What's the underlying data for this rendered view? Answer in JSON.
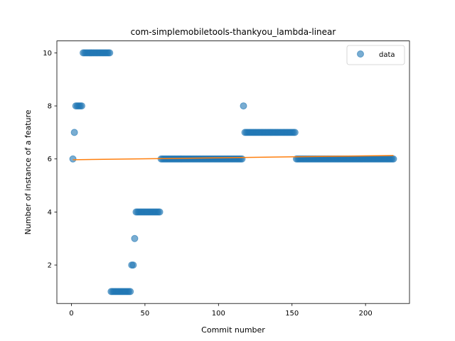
{
  "chart_data": {
    "type": "scatter",
    "title": "com-simplemobiletools-thankyou_lambda-linear",
    "xlabel": "Commit number",
    "ylabel": "Number of instance of a feature",
    "xlim": [
      -9.9,
      229.9
    ],
    "ylim": [
      0.55,
      10.45
    ],
    "xticks": [
      0,
      50,
      100,
      150,
      200
    ],
    "yticks": [
      2,
      4,
      6,
      8,
      10
    ],
    "grid": false,
    "legend": {
      "placement": "top-right",
      "entries": [
        "data"
      ]
    },
    "colors": {
      "scatter": "#1f77b4",
      "fit_line": "#ff7f0e"
    },
    "series": [
      {
        "name": "data",
        "kind": "scatter",
        "runs": [
          {
            "x_start": 1,
            "x_end": 1,
            "y": 6
          },
          {
            "x_start": 2,
            "x_end": 2,
            "y": 7
          },
          {
            "x_start": 3,
            "x_end": 7,
            "y": 8
          },
          {
            "x_start": 8,
            "x_end": 26,
            "y": 10
          },
          {
            "x_start": 27,
            "x_end": 40,
            "y": 1
          },
          {
            "x_start": 41,
            "x_end": 42,
            "y": 2
          },
          {
            "x_start": 43,
            "x_end": 43,
            "y": 3
          },
          {
            "x_start": 44,
            "x_end": 60,
            "y": 4
          },
          {
            "x_start": 61,
            "x_end": 116,
            "y": 6
          },
          {
            "x_start": 117,
            "x_end": 117,
            "y": 8
          },
          {
            "x_start": 118,
            "x_end": 152,
            "y": 7
          },
          {
            "x_start": 153,
            "x_end": 219,
            "y": 6
          }
        ]
      },
      {
        "kind": "line",
        "x": [
          1,
          219
        ],
        "y": [
          5.97,
          6.13
        ]
      }
    ]
  }
}
